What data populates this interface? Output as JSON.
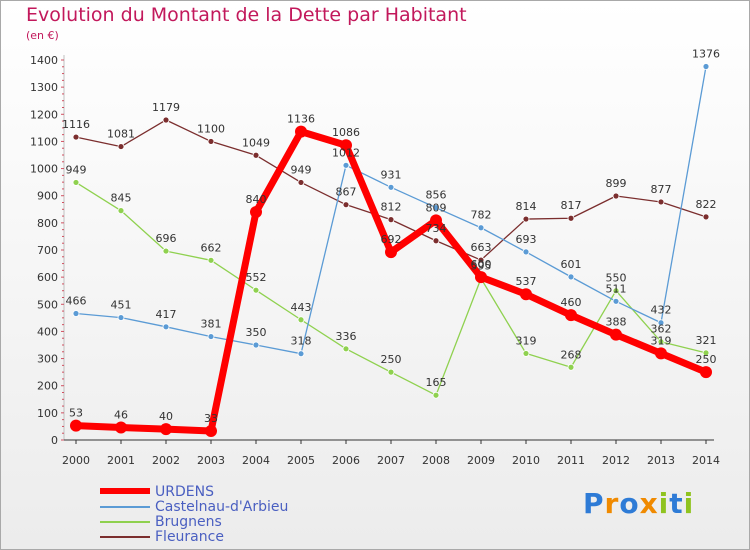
{
  "chart_data": {
    "type": "line",
    "title": "Evolution du Montant de la Dette par Habitant",
    "subtitle": "(en €)",
    "x": [
      "2000",
      "2001",
      "2002",
      "2003",
      "2004",
      "2005",
      "2006",
      "2007",
      "2008",
      "2009",
      "2010",
      "2011",
      "2012",
      "2013",
      "2014"
    ],
    "ylim": [
      0,
      1400
    ],
    "yticks": [
      0,
      100,
      200,
      300,
      400,
      500,
      600,
      700,
      800,
      900,
      1000,
      1100,
      1200,
      1300,
      1400
    ],
    "grid": false,
    "legend_position": "bottom",
    "series": [
      {
        "name": "URDENS",
        "color": "#ff0000",
        "values": [
          53,
          46,
          40,
          33,
          840,
          1136,
          1086,
          692,
          809,
          600,
          537,
          460,
          388,
          319,
          250
        ]
      },
      {
        "name": "Castelnau-d'Arbieu",
        "color": "#5b9bd5",
        "values": [
          466,
          451,
          417,
          381,
          350,
          318,
          1012,
          931,
          856,
          782,
          693,
          601,
          511,
          432,
          1376
        ]
      },
      {
        "name": "Brugnens",
        "color": "#8fd14f",
        "values": [
          949,
          845,
          696,
          662,
          552,
          443,
          336,
          250,
          165,
          595,
          319,
          268,
          550,
          362,
          321
        ]
      },
      {
        "name": "Fleurance",
        "color": "#7b2e2e",
        "values": [
          1116,
          1081,
          1179,
          1100,
          1049,
          949,
          867,
          812,
          734,
          663,
          814,
          817,
          899,
          877,
          822
        ]
      }
    ]
  },
  "logo": {
    "letters": [
      "P",
      "r",
      "o",
      "x",
      "i",
      "t",
      "i"
    ],
    "colors": [
      "#2e7bd6",
      "#f08a00",
      "#2e7bd6",
      "#f08a00",
      "#8fc31f",
      "#2e7bd6",
      "#8fc31f"
    ]
  }
}
